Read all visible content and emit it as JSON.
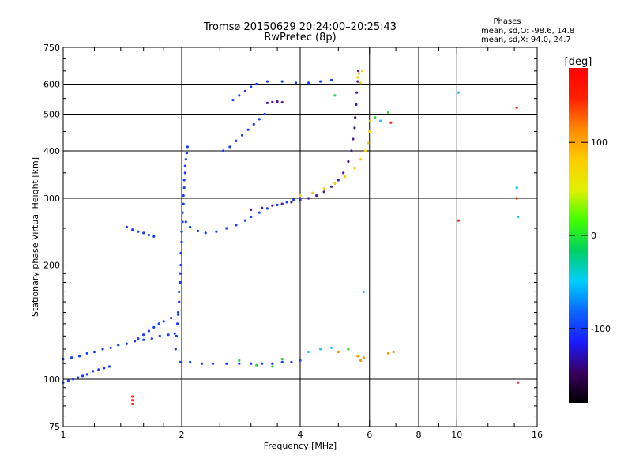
{
  "chart_data": {
    "type": "scatter",
    "title": "Tromsø 20150629 20:24:00–20:25:43",
    "subtitle": "RwPretec (8p)",
    "xlabel": "Frequency [MHz]",
    "ylabel": "Stationary phase Virtual Height [km]",
    "x_scale": "log",
    "y_scale": "log",
    "xlim": [
      1,
      16
    ],
    "ylim": [
      75,
      750
    ],
    "x_ticks": [
      1,
      2,
      4,
      6,
      8,
      10,
      16
    ],
    "y_ticks": [
      75,
      100,
      200,
      300,
      400,
      500,
      600,
      750
    ],
    "x_grid": [
      2,
      4,
      6,
      8,
      10
    ],
    "y_grid": [
      100,
      200,
      300,
      400,
      500,
      600
    ],
    "grid": true,
    "legend": {
      "title": "Phases",
      "lines": [
        "mean, sd,O: -98.6, 14.8",
        "mean, sd,X:  94.0, 24.7"
      ],
      "placement": "top-right"
    },
    "colorbar": {
      "label": "[deg]",
      "range": [
        -180,
        180
      ],
      "ticks": [
        100,
        0,
        -100
      ],
      "colormap": [
        "#000000",
        "#3a0060",
        "#1a1aff",
        "#0a66ff",
        "#00d0ff",
        "#00d060",
        "#40ff00",
        "#e0f000",
        "#ffcc00",
        "#ff8800",
        "#ff2000",
        "#ff0000"
      ]
    },
    "color_key": {
      "O": "#1a3cff",
      "O_dark": "#4a1a9a",
      "X": "#f0d010",
      "X_orange": "#ff9000",
      "cyan": "#20c8f0",
      "green": "#30d040",
      "red": "#ff2a1a"
    },
    "series": [
      {
        "phase": "O",
        "color_key": "O",
        "points": [
          [
            1.0,
            98
          ],
          [
            1.03,
            99
          ],
          [
            1.06,
            100
          ],
          [
            1.09,
            101
          ],
          [
            1.12,
            102
          ],
          [
            1.15,
            103
          ],
          [
            1.19,
            105
          ],
          [
            1.23,
            106
          ],
          [
            1.27,
            107
          ],
          [
            1.31,
            108
          ]
        ]
      },
      {
        "phase": "O",
        "color_key": "O",
        "points": [
          [
            1.0,
            113
          ],
          [
            1.05,
            114
          ],
          [
            1.1,
            115
          ],
          [
            1.15,
            117
          ],
          [
            1.2,
            118
          ],
          [
            1.26,
            120
          ],
          [
            1.32,
            121
          ],
          [
            1.38,
            123
          ],
          [
            1.45,
            124
          ],
          [
            1.52,
            126
          ],
          [
            1.6,
            127
          ],
          [
            1.68,
            128
          ],
          [
            1.76,
            130
          ],
          [
            1.85,
            131
          ],
          [
            1.92,
            132
          ]
        ]
      },
      {
        "phase": "O",
        "color_key": "O",
        "points": [
          [
            1.55,
            128
          ],
          [
            1.6,
            131
          ],
          [
            1.65,
            134
          ],
          [
            1.7,
            137
          ],
          [
            1.75,
            140
          ],
          [
            1.8,
            142
          ],
          [
            1.88,
            145
          ],
          [
            1.96,
            148
          ]
        ]
      },
      {
        "phase": "O",
        "color_key": "O",
        "points": [
          [
            1.98,
            111
          ],
          [
            2.1,
            111
          ],
          [
            2.25,
            110
          ],
          [
            2.4,
            110
          ],
          [
            2.6,
            110
          ],
          [
            2.8,
            110
          ],
          [
            3.0,
            110
          ],
          [
            3.2,
            110
          ],
          [
            3.4,
            110
          ],
          [
            3.6,
            111
          ],
          [
            3.8,
            111
          ],
          [
            4.0,
            112
          ]
        ]
      },
      {
        "phase": "O",
        "color_key": "O",
        "points": [
          [
            1.93,
            120
          ],
          [
            1.94,
            130
          ],
          [
            1.95,
            140
          ],
          [
            1.96,
            150
          ],
          [
            1.97,
            160
          ],
          [
            1.97,
            170
          ],
          [
            1.98,
            180
          ],
          [
            1.98,
            190
          ],
          [
            1.99,
            200
          ],
          [
            1.99,
            215
          ],
          [
            2.0,
            230
          ],
          [
            2.0,
            245
          ],
          [
            2.01,
            260
          ],
          [
            2.01,
            275
          ],
          [
            2.02,
            290
          ],
          [
            2.02,
            305
          ],
          [
            2.03,
            320
          ],
          [
            2.03,
            335
          ],
          [
            2.04,
            350
          ],
          [
            2.04,
            365
          ],
          [
            2.05,
            380
          ],
          [
            2.06,
            395
          ],
          [
            2.07,
            410
          ]
        ]
      },
      {
        "phase": "O",
        "color_key": "O",
        "points": [
          [
            2.05,
            260
          ],
          [
            2.1,
            252
          ],
          [
            2.2,
            246
          ],
          [
            2.3,
            243
          ],
          [
            2.45,
            245
          ],
          [
            2.6,
            250
          ],
          [
            2.75,
            255
          ],
          [
            2.9,
            262
          ],
          [
            3.0,
            268
          ],
          [
            3.15,
            275
          ],
          [
            3.3,
            282
          ],
          [
            3.5,
            288
          ],
          [
            3.7,
            293
          ],
          [
            3.85,
            297
          ],
          [
            4.0,
            300
          ]
        ]
      },
      {
        "phase": "O",
        "color_key": "O_dark",
        "points": [
          [
            3.0,
            280
          ],
          [
            3.2,
            283
          ],
          [
            3.4,
            287
          ],
          [
            3.6,
            290
          ],
          [
            3.8,
            293
          ],
          [
            4.0,
            297
          ],
          [
            4.2,
            300
          ],
          [
            4.4,
            305
          ],
          [
            4.6,
            312
          ],
          [
            4.8,
            322
          ],
          [
            5.0,
            335
          ],
          [
            5.15,
            350
          ],
          [
            5.3,
            375
          ],
          [
            5.4,
            400
          ],
          [
            5.45,
            430
          ],
          [
            5.5,
            460
          ],
          [
            5.52,
            490
          ],
          [
            5.55,
            530
          ],
          [
            5.57,
            570
          ],
          [
            5.6,
            610
          ],
          [
            5.62,
            650
          ]
        ]
      },
      {
        "phase": "O",
        "color_key": "O",
        "points": [
          [
            2.55,
            400
          ],
          [
            2.65,
            410
          ],
          [
            2.75,
            425
          ],
          [
            2.85,
            440
          ],
          [
            2.95,
            455
          ],
          [
            3.05,
            470
          ],
          [
            3.15,
            485
          ],
          [
            3.25,
            500
          ]
        ]
      },
      {
        "phase": "O",
        "color_key": "O",
        "points": [
          [
            2.7,
            545
          ],
          [
            2.8,
            560
          ],
          [
            2.9,
            575
          ],
          [
            3.0,
            590
          ],
          [
            3.1,
            600
          ],
          [
            3.3,
            610
          ],
          [
            3.6,
            610
          ],
          [
            3.9,
            605
          ],
          [
            4.2,
            605
          ],
          [
            4.5,
            610
          ],
          [
            4.8,
            615
          ]
        ]
      },
      {
        "phase": "O",
        "color_key": "O_dark",
        "points": [
          [
            3.3,
            535
          ],
          [
            3.4,
            538
          ],
          [
            3.5,
            540
          ],
          [
            3.6,
            537
          ]
        ]
      },
      {
        "phase": "O",
        "color_key": "O",
        "points": [
          [
            1.45,
            252
          ],
          [
            1.5,
            248
          ],
          [
            1.55,
            245
          ],
          [
            1.6,
            243
          ],
          [
            1.65,
            240
          ],
          [
            1.7,
            238
          ]
        ]
      },
      {
        "phase": "X",
        "color_key": "X",
        "points": [
          [
            4.0,
            305
          ],
          [
            4.3,
            310
          ],
          [
            4.6,
            318
          ],
          [
            4.9,
            328
          ],
          [
            5.2,
            342
          ],
          [
            5.5,
            360
          ],
          [
            5.7,
            380
          ],
          [
            5.85,
            400
          ],
          [
            5.95,
            420
          ],
          [
            6.0,
            450
          ],
          [
            6.03,
            480
          ]
        ]
      },
      {
        "phase": "X",
        "color_key": "X",
        "points": [
          [
            5.6,
            625
          ],
          [
            5.65,
            640
          ],
          [
            5.7,
            605
          ],
          [
            5.75,
            650
          ]
        ]
      },
      {
        "phase": "X",
        "color_key": "X_orange",
        "points": [
          [
            5.6,
            115
          ],
          [
            5.7,
            112
          ],
          [
            5.8,
            114
          ],
          [
            6.7,
            117
          ],
          [
            6.9,
            118
          ],
          [
            5.0,
            118
          ]
        ]
      },
      {
        "phase": "X",
        "color_key": "cyan",
        "points": [
          [
            4.2,
            118
          ],
          [
            4.5,
            120
          ],
          [
            4.8,
            121
          ],
          [
            5.8,
            170
          ],
          [
            6.4,
            480
          ],
          [
            10.1,
            570
          ],
          [
            14.2,
            320
          ],
          [
            14.3,
            268
          ]
        ]
      },
      {
        "phase": "X",
        "color_key": "green",
        "points": [
          [
            6.2,
            490
          ],
          [
            4.9,
            560
          ],
          [
            5.3,
            120
          ],
          [
            2.8,
            112
          ],
          [
            3.1,
            109
          ],
          [
            3.4,
            108
          ],
          [
            3.6,
            113
          ],
          [
            6.7,
            505
          ]
        ]
      },
      {
        "phase": "X",
        "color_key": "red",
        "points": [
          [
            1.5,
            90
          ],
          [
            1.5,
            88
          ],
          [
            1.5,
            86
          ],
          [
            6.8,
            475
          ],
          [
            14.2,
            520
          ],
          [
            14.2,
            300
          ],
          [
            10.1,
            262
          ],
          [
            14.3,
            98
          ]
        ]
      }
    ]
  }
}
